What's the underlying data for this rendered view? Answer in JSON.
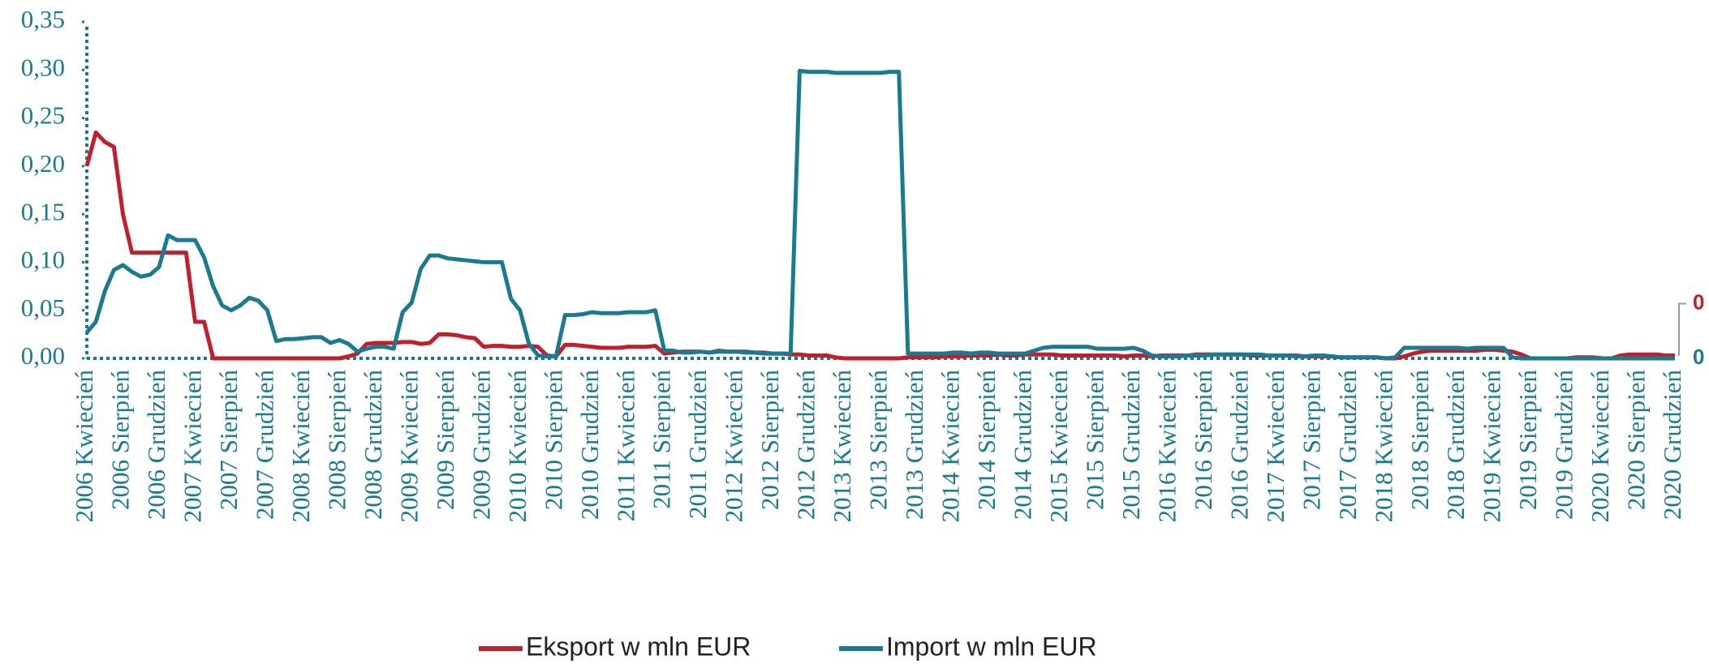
{
  "chart_data": {
    "type": "line",
    "categories": [
      "2006 Kwiecień",
      null,
      null,
      null,
      "2006 Sierpień",
      null,
      null,
      null,
      "2006 Grudzień",
      null,
      null,
      null,
      "2007 Kwiecień",
      null,
      null,
      null,
      "2007 Sierpień",
      null,
      null,
      null,
      "2007 Grudzień",
      null,
      null,
      null,
      "2008 Kwiecień",
      null,
      null,
      null,
      "2008 Sierpień",
      null,
      null,
      null,
      "2008 Grudzień",
      null,
      null,
      null,
      "2009 Kwiecień",
      null,
      null,
      null,
      "2009 Sierpień",
      null,
      null,
      null,
      "2009 Grudzień",
      null,
      null,
      null,
      "2010 Kwiecień",
      null,
      null,
      null,
      "2010 Sierpień",
      null,
      null,
      null,
      "2010 Grudzień",
      null,
      null,
      null,
      "2011 Kwiecień",
      null,
      null,
      null,
      "2011 Sierpień",
      null,
      null,
      null,
      "2011 Grudzień",
      null,
      null,
      null,
      "2012 Kwiecień",
      null,
      null,
      null,
      "2012 Sierpień",
      null,
      null,
      null,
      "2012 Grudzień",
      null,
      null,
      null,
      "2013 Kwiecień",
      null,
      null,
      null,
      "2013 Sierpień",
      null,
      null,
      null,
      "2013 Grudzień",
      null,
      null,
      null,
      "2014 Kwiecień",
      null,
      null,
      null,
      "2014 Sierpień",
      null,
      null,
      null,
      "2014 Grudzień",
      null,
      null,
      null,
      "2015 Kwiecień",
      null,
      null,
      null,
      "2015 Sierpień",
      null,
      null,
      null,
      "2015 Grudzień",
      null,
      null,
      null,
      "2016 Kwiecień",
      null,
      null,
      null,
      "2016 Sierpień",
      null,
      null,
      null,
      "2016 Grudzień",
      null,
      null,
      null,
      "2017 Kwiecień",
      null,
      null,
      null,
      "2017 Sierpień",
      null,
      null,
      null,
      "2017 Grudzień",
      null,
      null,
      null,
      "2018 Kwiecień",
      null,
      null,
      null,
      "2018 Sierpień",
      null,
      null,
      null,
      "2018 Grudzień",
      null,
      null,
      null,
      "2019 Kwiecień",
      null,
      null,
      null,
      "2019 Sierpień",
      null,
      null,
      null,
      "2019 Grudzień",
      null,
      null,
      null,
      "2020 Kwiecień",
      null,
      null,
      null,
      "2020 Sierpień",
      null,
      null,
      null,
      "2020 Grudzień"
    ],
    "series": [
      {
        "name": "Eksport w mln EUR",
        "color": "#c0202e",
        "values": [
          0.2,
          0.235,
          0.225,
          0.22,
          0.15,
          0.11,
          0.11,
          0.11,
          0.11,
          0.11,
          0.11,
          0.11,
          0.038,
          0.038,
          0,
          0,
          0,
          0,
          0,
          0,
          0,
          0,
          0,
          0,
          0,
          0,
          0,
          0,
          0,
          0.002,
          0.005,
          0.015,
          0.016,
          0.016,
          0.016,
          0.017,
          0.017,
          0.015,
          0.016,
          0.025,
          0.025,
          0.024,
          0.022,
          0.021,
          0.012,
          0.013,
          0.013,
          0.012,
          0.012,
          0.013,
          0.012,
          0.003,
          0.002,
          0.014,
          0.014,
          0.013,
          0.012,
          0.011,
          0.011,
          0.011,
          0.012,
          0.012,
          0.012,
          0.013,
          0.005,
          0.006,
          0.007,
          0.007,
          0.007,
          0.006,
          0.008,
          0.007,
          0.007,
          0.007,
          0.006,
          0.006,
          0.005,
          0.005,
          0.004,
          0.004,
          0.003,
          0.003,
          0.003,
          0.001,
          0,
          0,
          0,
          0,
          0,
          0,
          0,
          0.001,
          0.001,
          0.001,
          0.001,
          0.002,
          0.002,
          0.002,
          0.003,
          0.003,
          0.003,
          0.004,
          0.003,
          0.003,
          0.004,
          0.004,
          0.004,
          0.004,
          0.003,
          0.003,
          0.003,
          0.003,
          0.003,
          0.003,
          0.003,
          0.002,
          0.003,
          0.003,
          0.002,
          0.003,
          0.003,
          0.003,
          0.003,
          0.004,
          0.004,
          0.004,
          0.004,
          0.004,
          0.004,
          0.003,
          0.003,
          0.003,
          0.003,
          0.003,
          0.003,
          0.002,
          0.002,
          0.002,
          0.002,
          0.001,
          0.001,
          0.001,
          0.001,
          0.001,
          0,
          0,
          0.002,
          0.005,
          0.007,
          0.008,
          0.008,
          0.008,
          0.008,
          0.008,
          0.008,
          0.009,
          0.009,
          0.008,
          0.007,
          0.004,
          0,
          0,
          0,
          0,
          0,
          0.001,
          0.001,
          0.001,
          0,
          0,
          0.003,
          0.004,
          0.004,
          0.004,
          0.004,
          0.003,
          0.003
        ],
        "value_labels": [
          null,
          null,
          null,
          null,
          null,
          null,
          null,
          null,
          null,
          null,
          null,
          null,
          null,
          null,
          null,
          null,
          null,
          null,
          null,
          null,
          null,
          null,
          null,
          null,
          null,
          null,
          null,
          null,
          null,
          null,
          null,
          null,
          null,
          null,
          null,
          null,
          null,
          null,
          null,
          null,
          null,
          null,
          null,
          null,
          null,
          null,
          null,
          null,
          null,
          null,
          null,
          null,
          null,
          null,
          null,
          null,
          null,
          null,
          null,
          null,
          null,
          null,
          null,
          null,
          null,
          null,
          null,
          null,
          null,
          null,
          null,
          null,
          null,
          null,
          null,
          null,
          null,
          null,
          null,
          null,
          null,
          null,
          null,
          null,
          null,
          null,
          null,
          null,
          null,
          null,
          null,
          null,
          null,
          null,
          null,
          null,
          null,
          null,
          null,
          null,
          null,
          null,
          null,
          null,
          null,
          null,
          null,
          null,
          null,
          null,
          null,
          null,
          null,
          null,
          null,
          null,
          null,
          null,
          null,
          null,
          null,
          null,
          null,
          null,
          null,
          null,
          null,
          null,
          null,
          null,
          null,
          null,
          null,
          null,
          null,
          null,
          null,
          null,
          null,
          null,
          null,
          null,
          null,
          null,
          null,
          null,
          null,
          null,
          null,
          null,
          null,
          null,
          null,
          null,
          null,
          null,
          null,
          null,
          null,
          null,
          null,
          null,
          null,
          null,
          null,
          null,
          null,
          null,
          null,
          null,
          null,
          null,
          null,
          null,
          null,
          null,
          "0"
        ]
      },
      {
        "name": "Import w mln EUR",
        "color": "#1b7a8f",
        "values": [
          0.027,
          0.038,
          0.07,
          0.092,
          0.097,
          0.09,
          0.085,
          0.087,
          0.095,
          0.128,
          0.123,
          0.123,
          0.123,
          0.105,
          0.075,
          0.055,
          0.05,
          0.055,
          0.063,
          0.06,
          0.05,
          0.018,
          0.02,
          0.02,
          0.021,
          0.022,
          0.022,
          0.016,
          0.019,
          0.015,
          0.007,
          0.01,
          0.012,
          0.012,
          0.01,
          0.048,
          0.058,
          0.093,
          0.107,
          0.107,
          0.104,
          0.103,
          0.102,
          0.101,
          0.1,
          0.1,
          0.1,
          0.062,
          0.05,
          0.015,
          0.003,
          0.002,
          0.002,
          0.045,
          0.045,
          0.046,
          0.048,
          0.047,
          0.047,
          0.047,
          0.048,
          0.048,
          0.048,
          0.05,
          0.008,
          0.008,
          0.006,
          0.006,
          0.007,
          0.006,
          0.007,
          0.007,
          0.007,
          0.006,
          0.006,
          0.005,
          0.005,
          0.005,
          0.005,
          0.299,
          0.298,
          0.298,
          0.298,
          0.297,
          0.297,
          0.297,
          0.297,
          0.297,
          0.297,
          0.298,
          0.298,
          0.005,
          0.005,
          0.005,
          0.005,
          0.005,
          0.006,
          0.006,
          0.005,
          0.006,
          0.006,
          0.005,
          0.005,
          0.005,
          0.005,
          0.008,
          0.011,
          0.012,
          0.012,
          0.012,
          0.012,
          0.012,
          0.01,
          0.01,
          0.01,
          0.01,
          0.011,
          0.008,
          0.003,
          0.002,
          0.002,
          0.002,
          0.003,
          0.003,
          0.003,
          0.004,
          0.004,
          0.004,
          0.004,
          0.004,
          0.004,
          0.003,
          0.003,
          0.003,
          0.002,
          0.002,
          0.003,
          0.003,
          0.002,
          0.001,
          0.001,
          0.001,
          0.001,
          0.001,
          0,
          0.001,
          0.011,
          0.011,
          0.011,
          0.011,
          0.011,
          0.011,
          0.011,
          0.01,
          0.011,
          0.011,
          0.011,
          0.011,
          0.001,
          0,
          0,
          0,
          0,
          0,
          0,
          0,
          0,
          0,
          0,
          0,
          0,
          0,
          0,
          0,
          0,
          0,
          0
        ],
        "value_labels": [
          null,
          null,
          null,
          null,
          null,
          null,
          null,
          null,
          null,
          null,
          null,
          null,
          null,
          null,
          null,
          null,
          null,
          null,
          null,
          null,
          null,
          null,
          null,
          null,
          null,
          null,
          null,
          null,
          null,
          null,
          null,
          null,
          null,
          null,
          null,
          null,
          null,
          null,
          null,
          null,
          null,
          null,
          null,
          null,
          null,
          null,
          null,
          null,
          null,
          null,
          null,
          null,
          null,
          null,
          null,
          null,
          null,
          null,
          null,
          null,
          null,
          null,
          null,
          null,
          null,
          null,
          null,
          null,
          null,
          null,
          null,
          null,
          null,
          null,
          null,
          null,
          null,
          null,
          null,
          null,
          null,
          null,
          null,
          null,
          null,
          null,
          null,
          null,
          null,
          null,
          null,
          null,
          null,
          null,
          null,
          null,
          null,
          null,
          null,
          null,
          null,
          null,
          null,
          null,
          null,
          null,
          null,
          null,
          null,
          null,
          null,
          null,
          null,
          null,
          null,
          null,
          null,
          null,
          null,
          null,
          null,
          null,
          null,
          null,
          null,
          null,
          null,
          null,
          null,
          null,
          null,
          null,
          null,
          null,
          null,
          null,
          null,
          null,
          null,
          null,
          null,
          null,
          null,
          null,
          null,
          null,
          null,
          null,
          null,
          null,
          null,
          null,
          null,
          null,
          null,
          null,
          null,
          null,
          null,
          null,
          null,
          null,
          null,
          null,
          null,
          null,
          null,
          null,
          null,
          null,
          null,
          null,
          null,
          null,
          null,
          null,
          "0"
        ]
      }
    ],
    "ylim": [
      0,
      0.35
    ],
    "yticks": [
      {
        "value": 0,
        "label": "0,00"
      },
      {
        "value": 0.05,
        "label": "0,05"
      },
      {
        "value": 0.1,
        "label": "0,10"
      },
      {
        "value": 0.15,
        "label": "0,15"
      },
      {
        "value": 0.2,
        "label": "0,20"
      },
      {
        "value": 0.25,
        "label": "0,25"
      },
      {
        "value": 0.3,
        "label": "0,30"
      },
      {
        "value": 0.35,
        "label": "0,35"
      }
    ],
    "axis_color": "#1b7a8f",
    "legend": "bottom"
  }
}
